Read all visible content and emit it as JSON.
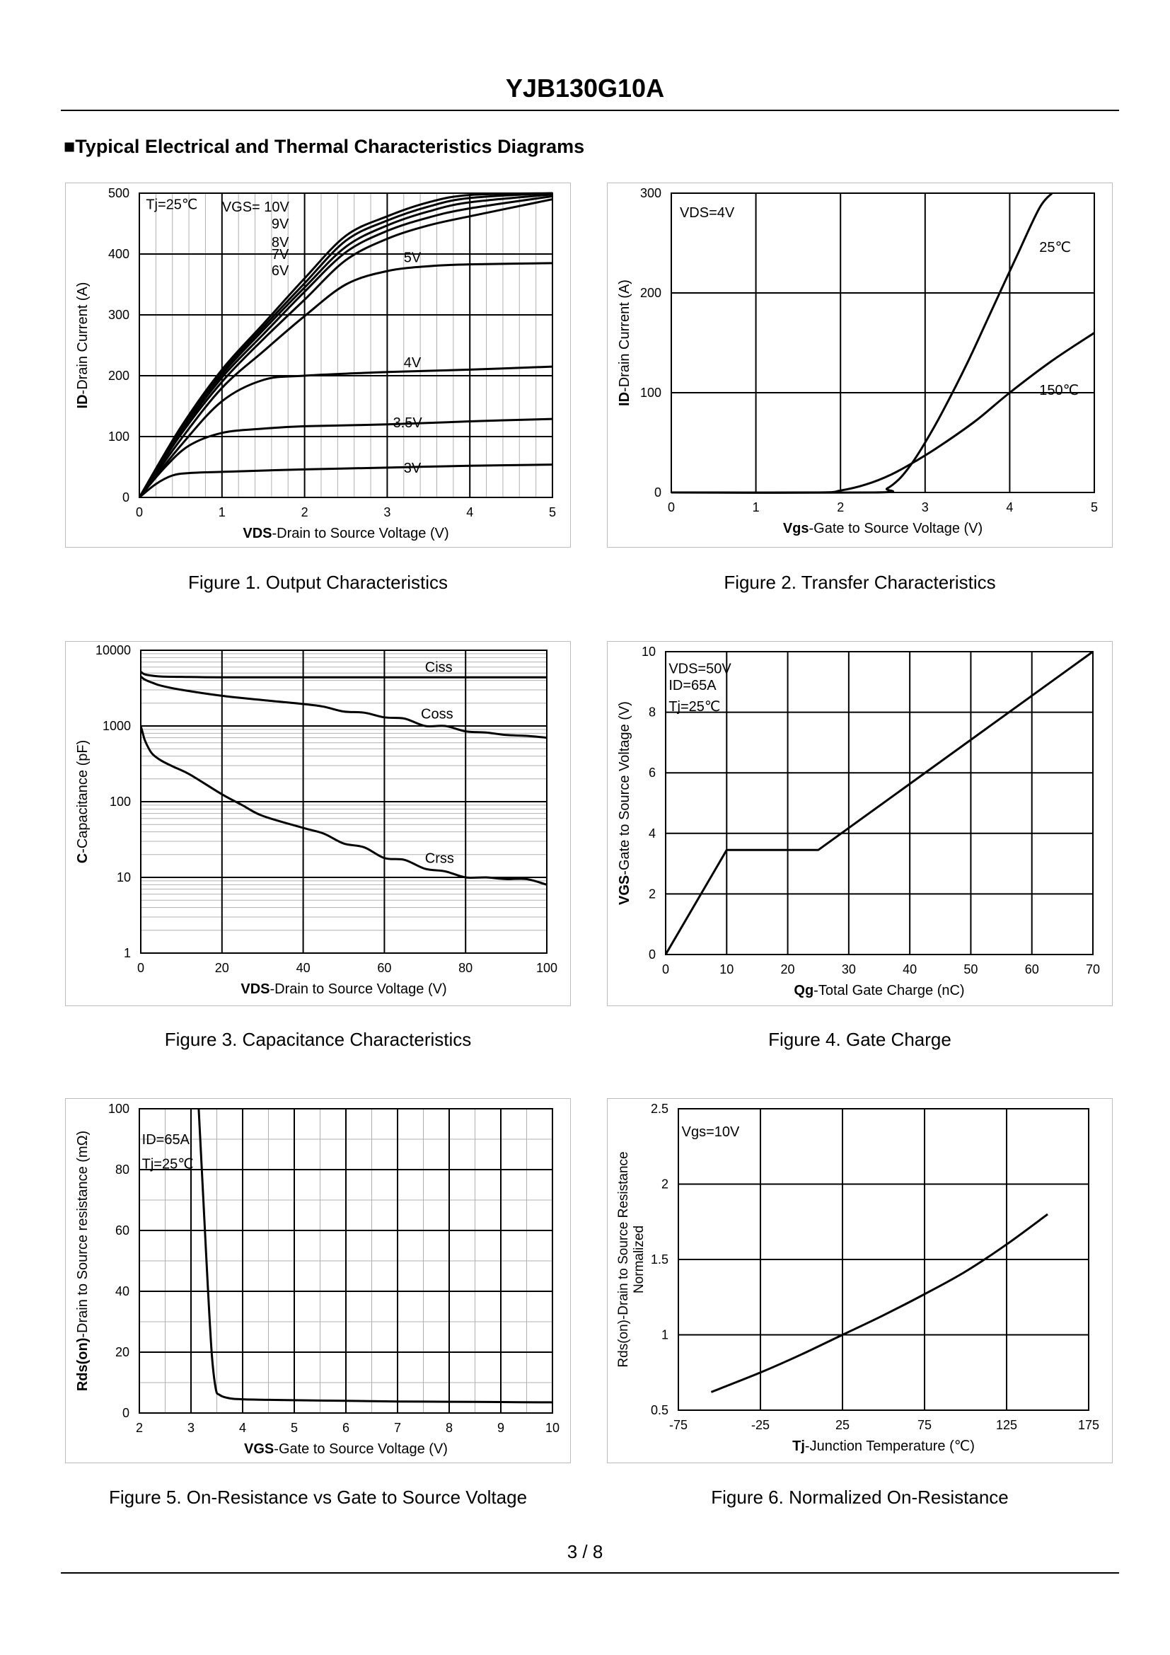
{
  "header": {
    "part_number": "YJB130G10A",
    "section_title": "■Typical Electrical and Thermal Characteristics Diagrams"
  },
  "footer": {
    "page": "3 / 8"
  },
  "chart_data": [
    {
      "id": "fig1",
      "type": "line",
      "caption": "Figure 1.  Output Characteristics",
      "xlabel_bold": "VDS",
      "xlabel_rest": "-Drain to Source Voltage (V)",
      "ylabel_bold": "ID",
      "ylabel_rest": "-Drain Current (A)",
      "xlim": [
        0,
        5
      ],
      "ylim": [
        0,
        500
      ],
      "xticks": [
        0,
        1,
        2,
        3,
        4,
        5
      ],
      "yticks": [
        0,
        100,
        200,
        300,
        400,
        500
      ],
      "annotations": [
        {
          "text": "Tj=25℃",
          "x": 0.08,
          "y": 482
        },
        {
          "text": "VGS= 10V",
          "x": 1.0,
          "y": 478
        },
        {
          "text": "9V",
          "x": 1.6,
          "y": 450
        },
        {
          "text": "8V",
          "x": 1.6,
          "y": 420
        },
        {
          "text": "7V",
          "x": 1.6,
          "y": 400
        },
        {
          "text": "6V",
          "x": 1.6,
          "y": 373
        },
        {
          "text": "5V",
          "x": 3.2,
          "y": 395
        },
        {
          "text": "4V",
          "x": 3.2,
          "y": 222
        },
        {
          "text": "3.5V",
          "x": 3.07,
          "y": 123
        },
        {
          "text": "3V",
          "x": 3.2,
          "y": 49
        }
      ],
      "series": [
        {
          "name": "10V",
          "x": [
            0,
            0.5,
            1,
            1.5,
            2,
            2.5,
            3,
            3.5,
            4,
            5
          ],
          "y": [
            0,
            115,
            210,
            285,
            360,
            430,
            462,
            485,
            497,
            500
          ]
        },
        {
          "name": "9V",
          "x": [
            0,
            0.5,
            1,
            1.5,
            2,
            2.5,
            3,
            3.5,
            4,
            5
          ],
          "y": [
            0,
            113,
            206,
            280,
            352,
            422,
            455,
            478,
            492,
            500
          ]
        },
        {
          "name": "8V",
          "x": [
            0,
            0.5,
            1,
            1.5,
            2,
            2.5,
            3,
            3.5,
            4,
            5
          ],
          "y": [
            0,
            110,
            202,
            275,
            345,
            412,
            447,
            470,
            485,
            498
          ]
        },
        {
          "name": "7V",
          "x": [
            0,
            0.5,
            1,
            1.5,
            2,
            2.5,
            3,
            3.5,
            4,
            5
          ],
          "y": [
            0,
            107,
            197,
            268,
            338,
            403,
            438,
            460,
            475,
            495
          ]
        },
        {
          "name": "6V",
          "x": [
            0,
            0.5,
            1,
            1.5,
            2,
            2.5,
            3,
            3.5,
            4,
            5
          ],
          "y": [
            0,
            103,
            190,
            260,
            325,
            390,
            425,
            447,
            462,
            490
          ]
        },
        {
          "name": "5V",
          "x": [
            0,
            0.5,
            1,
            1.5,
            2,
            2.5,
            3,
            3.5,
            4,
            5
          ],
          "y": [
            0,
            95,
            180,
            240,
            298,
            350,
            372,
            380,
            383,
            385
          ]
        },
        {
          "name": "4V",
          "x": [
            0,
            0.5,
            1,
            1.5,
            2,
            3,
            4,
            5
          ],
          "y": [
            0,
            85,
            158,
            193,
            200,
            206,
            210,
            215
          ]
        },
        {
          "name": "3.5V",
          "x": [
            0,
            0.3,
            0.6,
            1,
            1.5,
            2,
            3,
            4,
            5
          ],
          "y": [
            0,
            48,
            85,
            106,
            113,
            117,
            120,
            125,
            129
          ]
        },
        {
          "name": "3V",
          "x": [
            0,
            0.2,
            0.4,
            0.6,
            1,
            2,
            3,
            4,
            5
          ],
          "y": [
            0,
            22,
            36,
            40,
            42,
            46,
            49,
            52,
            54
          ]
        }
      ]
    },
    {
      "id": "fig2",
      "type": "line",
      "caption": "Figure 2.  Transfer Characteristics",
      "xlabel_bold": "Vgs",
      "xlabel_rest": "-Gate to Source Voltage (V)",
      "ylabel_bold": "ID",
      "ylabel_rest": "-Drain Current (A)",
      "xlim": [
        0,
        5
      ],
      "ylim": [
        0,
        300
      ],
      "xticks": [
        0,
        1,
        2,
        3,
        4,
        5
      ],
      "yticks": [
        0,
        100,
        200,
        300
      ],
      "annotations": [
        {
          "text": "VDS=4V",
          "x": 0.1,
          "y": 281
        },
        {
          "text": "25℃",
          "x": 4.35,
          "y": 246
        },
        {
          "text": "150℃",
          "x": 4.35,
          "y": 103
        }
      ],
      "series": [
        {
          "name": "25℃",
          "x": [
            0,
            2.4,
            2.55,
            2.7,
            2.85,
            3.0,
            3.2,
            3.5,
            3.8,
            4.1,
            4.35,
            4.5
          ],
          "y": [
            0,
            0,
            4,
            14,
            30,
            50,
            80,
            130,
            185,
            240,
            285,
            300
          ]
        },
        {
          "name": "150℃",
          "x": [
            0,
            1.7,
            2.0,
            2.3,
            2.6,
            2.9,
            3.2,
            3.6,
            4.0,
            4.5,
            5.0
          ],
          "y": [
            0,
            0,
            2,
            8,
            18,
            32,
            48,
            72,
            100,
            132,
            160
          ]
        }
      ]
    },
    {
      "id": "fig3",
      "type": "line",
      "caption": "Figure 3.  Capacitance Characteristics",
      "xlabel_bold": "VDS",
      "xlabel_rest": "-Drain to Source Voltage (V)",
      "ylabel_bold": "C",
      "ylabel_rest": "-Capacitance (pF)",
      "xlim": [
        0,
        100
      ],
      "ylim": [
        1,
        10000
      ],
      "yscale": "log",
      "xticks": [
        0,
        20,
        40,
        60,
        80,
        100
      ],
      "yticks": [
        1,
        10,
        100,
        1000,
        10000
      ],
      "annotations": [
        {
          "text": "Ciss",
          "x": 70,
          "y": 6000
        },
        {
          "text": "Coss",
          "x": 69,
          "y": 1450
        },
        {
          "text": "Crss",
          "x": 70,
          "y": 18
        }
      ],
      "series": [
        {
          "name": "Ciss",
          "x": [
            0,
            1,
            3,
            5,
            10,
            20,
            40,
            60,
            80,
            100
          ],
          "y": [
            5200,
            4800,
            4600,
            4500,
            4450,
            4400,
            4400,
            4400,
            4400,
            4400
          ]
        },
        {
          "name": "Coss",
          "x": [
            0,
            1,
            3,
            5,
            10,
            20,
            30,
            40,
            45,
            50,
            55,
            60,
            65,
            70,
            75,
            80,
            85,
            90,
            95,
            100
          ],
          "y": [
            4500,
            4100,
            3700,
            3400,
            3000,
            2500,
            2200,
            1950,
            1800,
            1550,
            1500,
            1300,
            1250,
            1000,
            1000,
            850,
            820,
            760,
            740,
            700
          ]
        },
        {
          "name": "Crss",
          "x": [
            0,
            0.5,
            1,
            2,
            3,
            5,
            8,
            12,
            20,
            25,
            30,
            40,
            45,
            50,
            55,
            60,
            65,
            70,
            75,
            80,
            85,
            90,
            95,
            100
          ],
          "y": [
            1000,
            800,
            650,
            500,
            420,
            350,
            290,
            230,
            125,
            90,
            65,
            45,
            38,
            28,
            25,
            18,
            17,
            13,
            12,
            10,
            10,
            9.5,
            9.5,
            8
          ]
        }
      ]
    },
    {
      "id": "fig4",
      "type": "line",
      "caption": "Figure 4.  Gate Charge",
      "xlabel_bold": "Qg",
      "xlabel_rest": "-Total Gate Charge (nC)",
      "ylabel_bold": "VGS",
      "ylabel_rest": "-Gate to Source Voltage (V)",
      "xlim": [
        0,
        70
      ],
      "ylim": [
        0,
        10
      ],
      "xticks": [
        0,
        10,
        20,
        30,
        40,
        50,
        60,
        70
      ],
      "yticks": [
        0,
        2,
        4,
        6,
        8,
        10
      ],
      "annotations": [
        {
          "text": "VDS=50V",
          "x": 0.5,
          "y": 9.45
        },
        {
          "text": "ID=65A",
          "x": 0.5,
          "y": 8.9
        },
        {
          "text": "Tj=25℃",
          "x": 0.5,
          "y": 8.2
        }
      ],
      "series": [
        {
          "name": "VGS",
          "x": [
            0,
            10,
            25,
            70
          ],
          "y": [
            0,
            3.45,
            3.45,
            10
          ]
        }
      ]
    },
    {
      "id": "fig5",
      "type": "line",
      "caption": "Figure 5.  On-Resistance vs Gate to Source Voltage",
      "xlabel_bold": "VGS",
      "xlabel_rest": "-Gate to Source Voltage (V)",
      "ylabel_bold": "Rds(on)",
      "ylabel_rest": "-Drain to Source resistance (mΩ)",
      "xlim": [
        2,
        10
      ],
      "ylim": [
        0,
        100
      ],
      "xticks": [
        2,
        3,
        4,
        5,
        6,
        7,
        8,
        9,
        10
      ],
      "yticks": [
        0,
        20,
        40,
        60,
        80,
        100
      ],
      "annotations": [
        {
          "text": "ID=65A",
          "x": 2.05,
          "y": 90
        },
        {
          "text": "Tj=25℃",
          "x": 2.05,
          "y": 82
        }
      ],
      "series": [
        {
          "name": "Rds(on)",
          "x": [
            3.15,
            3.3,
            3.4,
            3.48,
            3.55,
            3.7,
            4,
            5,
            6,
            7,
            8,
            9,
            10
          ],
          "y": [
            100,
            50,
            20,
            8,
            6,
            5,
            4.5,
            4.2,
            4.0,
            3.8,
            3.7,
            3.6,
            3.5
          ]
        }
      ]
    },
    {
      "id": "fig6",
      "type": "line",
      "caption": "Figure 6.  Normalized On-Resistance",
      "xlabel_bold": "Tj",
      "xlabel_rest": "-Junction  Temperature (℃)",
      "ylabel_line1": "Rds(on)-Drain to Source Resistance",
      "ylabel_line2": "Normalized",
      "xlim": [
        -75,
        175
      ],
      "ylim": [
        0.5,
        2.5
      ],
      "xticks": [
        -75,
        -25,
        25,
        75,
        125,
        175
      ],
      "yticks": [
        0.5,
        1,
        1.5,
        2,
        2.5
      ],
      "ytick_labels": [
        "0.5",
        "1",
        "1.5",
        "2",
        "2.5"
      ],
      "annotations": [
        {
          "text": "Vgs=10V",
          "x": -73,
          "y": 2.35
        }
      ],
      "series": [
        {
          "name": "Rds(on) norm",
          "x": [
            -55,
            -25,
            0,
            25,
            50,
            75,
            100,
            125,
            150
          ],
          "y": [
            0.62,
            0.75,
            0.87,
            1.0,
            1.13,
            1.27,
            1.42,
            1.6,
            1.8
          ]
        }
      ]
    }
  ]
}
